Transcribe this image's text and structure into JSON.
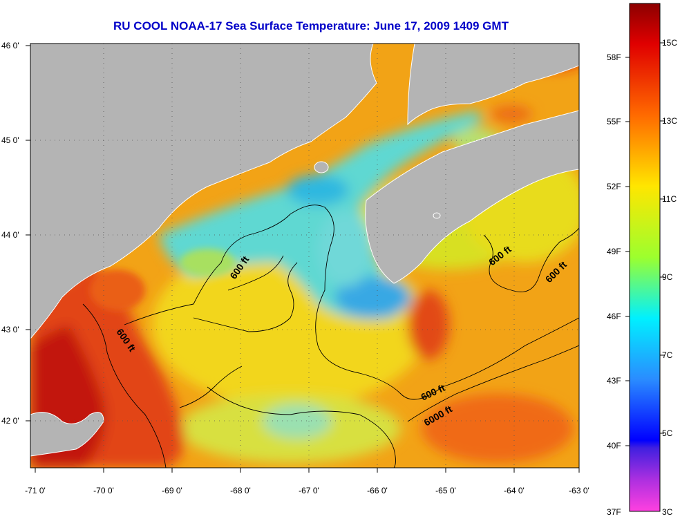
{
  "title": "RU COOL  NOAA-17  Sea Surface Temperature:  June 17, 2009 1409 GMT",
  "axes": {
    "lon_labels": [
      "-71 0'",
      "-70 0'",
      "-69 0'",
      "-68 0'",
      "-67 0'",
      "-66 0'",
      "-65 0'",
      "-64 0'",
      "-63 0'"
    ],
    "lat_labels": [
      "46 0'",
      "45 0'",
      "44 0'",
      "43 0'",
      "42 0'"
    ]
  },
  "contour_labels": {
    "c1": "600 ft",
    "c2": "600 ft",
    "c3": "600 ft",
    "c4": "600 ft",
    "c5": "600 ft",
    "c6": "6000 ft"
  },
  "colorbar": {
    "fahrenheit": [
      "58F",
      "55F",
      "52F",
      "49F",
      "46F",
      "43F",
      "40F",
      "37F"
    ],
    "celsius": [
      "15C",
      "13C",
      "11C",
      "9C",
      "7C",
      "5C",
      "3C"
    ]
  },
  "colors": {
    "land": "#b4b4b4",
    "title": "#0000c8",
    "gridline": "#555555"
  }
}
